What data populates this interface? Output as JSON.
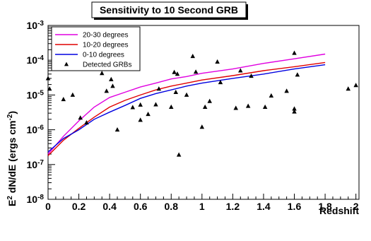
{
  "chart_data": {
    "type": "scatter",
    "title": "Sensitivity to 10 Second GRB",
    "xlabel": "Redshift",
    "ylabel_base": "E",
    "ylabel_sup": "2",
    "ylabel_mid": " dN/dE (ergs cm",
    "ylabel_unit_sup": "-2",
    "ylabel_end": ")",
    "xlim": [
      0,
      2.02
    ],
    "ylim_exponent_top": -3,
    "ylim_exponent_bottom": -8,
    "y_scale": "log",
    "x_ticks": [
      "0",
      "0.2",
      "0.4",
      "0.6",
      "0.8",
      "1",
      "1.2",
      "1.4",
      "1.6",
      "1.8",
      "2"
    ],
    "y_ticks": [
      {
        "base": "10",
        "exp": "-3"
      },
      {
        "base": "10",
        "exp": "-4"
      },
      {
        "base": "10",
        "exp": "-5"
      },
      {
        "base": "10",
        "exp": "-6"
      },
      {
        "base": "10",
        "exp": "-7"
      },
      {
        "base": "10",
        "exp": "-8"
      }
    ],
    "legend_position": "top-left",
    "series": [
      {
        "name": "20-30 degrees",
        "kind": "line",
        "color": "#e000e0",
        "x": [
          0,
          0.1,
          0.2,
          0.3,
          0.4,
          0.5,
          0.6,
          0.7,
          0.8,
          0.9,
          1.0,
          1.2,
          1.4,
          1.6,
          1.8
        ],
        "y": [
          2e-07,
          6.5e-07,
          1.8e-06,
          4.5e-06,
          8.5e-06,
          1.2e-05,
          1.7e-05,
          2.2e-05,
          2.9e-05,
          3.4e-05,
          4.2e-05,
          5.6e-05,
          8.1e-05,
          0.00011,
          0.00015
        ]
      },
      {
        "name": "10-20 degrees",
        "kind": "line",
        "color": "#e00000",
        "x": [
          0,
          0.1,
          0.2,
          0.3,
          0.4,
          0.5,
          0.6,
          0.7,
          0.8,
          0.9,
          1.0,
          1.2,
          1.4,
          1.6,
          1.8
        ],
        "y": [
          1.8e-07,
          5e-07,
          1.1e-06,
          2.3e-06,
          4.5e-06,
          7e-06,
          1e-05,
          1.4e-05,
          1.8e-05,
          2.2e-05,
          2.7e-05,
          3.6e-05,
          5e-05,
          6.5e-05,
          8.6e-05
        ]
      },
      {
        "name": "0-10 degrees",
        "kind": "line",
        "color": "#0000e0",
        "x": [
          0,
          0.1,
          0.2,
          0.3,
          0.4,
          0.5,
          0.6,
          0.7,
          0.8,
          0.9,
          1.0,
          1.2,
          1.4,
          1.6,
          1.8
        ],
        "y": [
          2.3e-07,
          5.6e-07,
          1e-06,
          2e-06,
          3.2e-06,
          5e-06,
          8e-06,
          1.1e-05,
          1.4e-05,
          1.8e-05,
          2.2e-05,
          3e-05,
          4e-05,
          5.6e-05,
          7.4e-05
        ]
      },
      {
        "name": "Detected GRBs",
        "kind": "scatter",
        "color": "#000000",
        "points": [
          [
            0.0,
            3e-05
          ],
          [
            0.01,
            1.5e-05
          ],
          [
            0.1,
            7.5e-06
          ],
          [
            0.16,
            1e-05
          ],
          [
            0.21,
            2.2e-06
          ],
          [
            0.25,
            1.6e-06
          ],
          [
            0.35,
            4.2e-05
          ],
          [
            0.38,
            1.3e-05
          ],
          [
            0.41,
            2.8e-05
          ],
          [
            0.42,
            1.8e-05
          ],
          [
            0.45,
            1e-06
          ],
          [
            0.55,
            4.4e-06
          ],
          [
            0.6,
            5.2e-06
          ],
          [
            0.6,
            1.9e-06
          ],
          [
            0.65,
            2.8e-06
          ],
          [
            0.7,
            5.3e-06
          ],
          [
            0.72,
            1.5e-05
          ],
          [
            0.8,
            4.5e-06
          ],
          [
            0.82,
            4.5e-05
          ],
          [
            0.83,
            1.2e-05
          ],
          [
            0.84,
            4e-05
          ],
          [
            0.85,
            1.9e-07
          ],
          [
            0.9,
            1e-05
          ],
          [
            0.94,
            0.00013
          ],
          [
            0.96,
            4.6e-05
          ],
          [
            1.0,
            1.2e-06
          ],
          [
            1.02,
            4.5e-06
          ],
          [
            1.05,
            6.6e-06
          ],
          [
            1.1,
            9e-05
          ],
          [
            1.12,
            2.3e-05
          ],
          [
            1.22,
            4.2e-06
          ],
          [
            1.25,
            5e-05
          ],
          [
            1.3,
            4.8e-06
          ],
          [
            1.32,
            3.5e-05
          ],
          [
            1.41,
            4.5e-06
          ],
          [
            1.45,
            9.5e-06
          ],
          [
            1.55,
            1.3e-05
          ],
          [
            1.6,
            4e-06
          ],
          [
            1.6,
            3.3e-06
          ],
          [
            1.6,
            0.00016
          ],
          [
            1.62,
            3.8e-05
          ],
          [
            1.95,
            1.5e-05
          ],
          [
            2.0,
            1.9e-05
          ]
        ]
      }
    ]
  }
}
